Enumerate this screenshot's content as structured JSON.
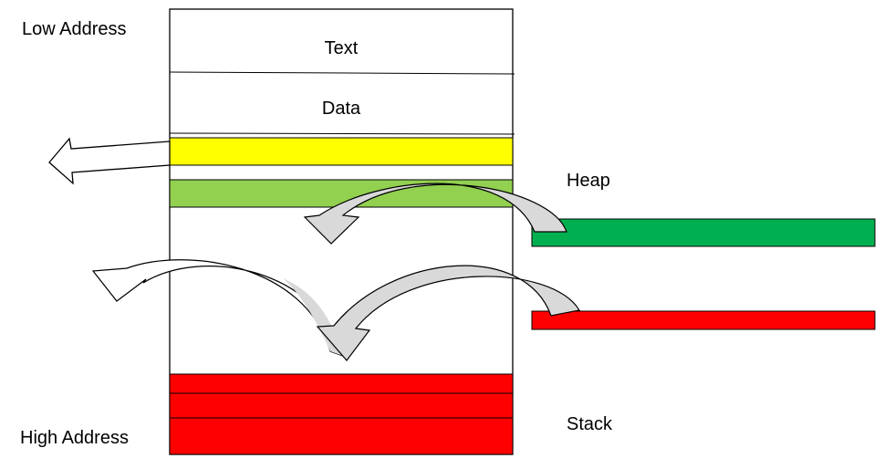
{
  "labels": {
    "low_address": "Low Address",
    "high_address": "High Address",
    "text_segment": "Text",
    "data_segment": "Data",
    "heap": "Heap",
    "stack": "Stack"
  },
  "colors": {
    "yellow_block": "#ffff00",
    "light_green_block": "#92d050",
    "heap_block": "#00b050",
    "red_block": "#ff0000",
    "arrow_fill_white": "#ffffff",
    "arrow_fill_grey": "#d9d9d9",
    "outline": "#000000"
  }
}
